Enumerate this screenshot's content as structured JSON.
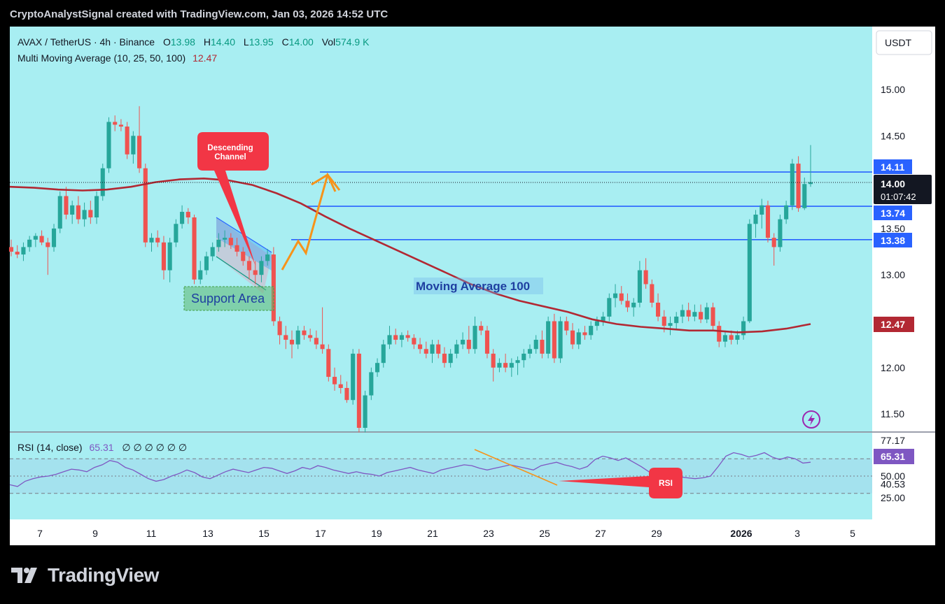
{
  "header": {
    "attribution": "CryptoAnalystSignal created with TradingView.com, Jan 03, 2026 14:52 UTC"
  },
  "footer": {
    "brand": "TradingView"
  },
  "colors": {
    "background": "#000000",
    "chart_bg": "#a8eef2",
    "up": "#26a69a",
    "down": "#ef5350",
    "ma": "#b22833",
    "level_line": "#2962ff",
    "rsi_line": "#7e57c2",
    "callout": "#f23645",
    "arrow": "#f7931a"
  },
  "legend": {
    "symbol": "AVAX / TetherUS · 4h · Binance",
    "o_label": "O",
    "o_value": "13.98",
    "h_label": "H",
    "h_value": "14.40",
    "l_label": "L",
    "l_value": "13.95",
    "c_label": "C",
    "c_value": "14.00",
    "vol_label": "Vol",
    "vol_value": "574.9 K",
    "ma_name": "Multi Moving Average (10, 25, 50, 100)",
    "ma_value": "12.47"
  },
  "rsi_legend": {
    "name": "RSI (14, close)",
    "value": "65.31",
    "extras": "∅ ∅ ∅ ∅ ∅ ∅"
  },
  "currency_button": "USDT",
  "price_badges": {
    "current": "14.00",
    "countdown": "01:07:42",
    "level_top": "14.11",
    "level_mid": "13.74",
    "level_low": "13.38",
    "ma": "12.47",
    "rsi": "65.31",
    "rsi_high": "77.17"
  },
  "annotations": {
    "descending_channel": "Descending Channel",
    "support_area": "Support Area",
    "moving_average": "Moving Average 100",
    "rsi_callout": "RSI"
  },
  "chart_data": {
    "type": "candlestick",
    "title": "AVAX / TetherUS · 4h · Binance",
    "price_axis": {
      "ticks": [
        "15.00",
        "14.50",
        "14.00",
        "13.50",
        "13.00",
        "12.50",
        "12.00",
        "11.50"
      ],
      "range": [
        11.3,
        15.6
      ]
    },
    "rsi_axis": {
      "ticks": [
        "77.17",
        "50.00",
        "40.53",
        "25.00"
      ],
      "range": [
        0,
        100
      ]
    },
    "x_ticks": [
      "7",
      "9",
      "11",
      "13",
      "15",
      "17",
      "19",
      "21",
      "23",
      "25",
      "27",
      "29",
      "2026",
      "3",
      "5"
    ],
    "levels": [
      14.11,
      13.74,
      13.38
    ],
    "candles": [
      {
        "o": 13.3,
        "h": 13.38,
        "l": 13.2,
        "c": 13.25
      },
      {
        "o": 13.25,
        "h": 13.32,
        "l": 13.18,
        "c": 13.22
      },
      {
        "o": 13.22,
        "h": 13.35,
        "l": 13.15,
        "c": 13.3
      },
      {
        "o": 13.3,
        "h": 13.42,
        "l": 13.25,
        "c": 13.38
      },
      {
        "o": 13.38,
        "h": 13.45,
        "l": 13.3,
        "c": 13.42
      },
      {
        "o": 13.42,
        "h": 13.48,
        "l": 13.32,
        "c": 13.35
      },
      {
        "o": 13.35,
        "h": 13.4,
        "l": 13.0,
        "c": 13.3
      },
      {
        "o": 13.3,
        "h": 13.55,
        "l": 13.25,
        "c": 13.5
      },
      {
        "o": 13.5,
        "h": 13.9,
        "l": 13.45,
        "c": 13.85
      },
      {
        "o": 13.85,
        "h": 13.95,
        "l": 13.6,
        "c": 13.65
      },
      {
        "o": 13.65,
        "h": 13.8,
        "l": 13.55,
        "c": 13.75
      },
      {
        "o": 13.75,
        "h": 13.85,
        "l": 13.55,
        "c": 13.6
      },
      {
        "o": 13.6,
        "h": 13.78,
        "l": 13.52,
        "c": 13.7
      },
      {
        "o": 13.7,
        "h": 13.8,
        "l": 13.55,
        "c": 13.62
      },
      {
        "o": 13.62,
        "h": 13.9,
        "l": 13.55,
        "c": 13.85
      },
      {
        "o": 13.85,
        "h": 14.2,
        "l": 13.8,
        "c": 14.15
      },
      {
        "o": 14.15,
        "h": 14.7,
        "l": 14.1,
        "c": 14.65
      },
      {
        "o": 14.65,
        "h": 14.72,
        "l": 14.55,
        "c": 14.62
      },
      {
        "o": 14.62,
        "h": 14.68,
        "l": 14.55,
        "c": 14.6
      },
      {
        "o": 14.6,
        "h": 14.65,
        "l": 14.25,
        "c": 14.3
      },
      {
        "o": 14.3,
        "h": 14.55,
        "l": 14.2,
        "c": 14.5
      },
      {
        "o": 14.5,
        "h": 14.82,
        "l": 14.1,
        "c": 14.15
      },
      {
        "o": 14.15,
        "h": 14.2,
        "l": 13.3,
        "c": 13.35
      },
      {
        "o": 13.35,
        "h": 13.45,
        "l": 13.25,
        "c": 13.4
      },
      {
        "o": 13.4,
        "h": 13.48,
        "l": 13.3,
        "c": 13.35
      },
      {
        "o": 13.35,
        "h": 13.42,
        "l": 12.95,
        "c": 13.05
      },
      {
        "o": 13.05,
        "h": 13.4,
        "l": 12.92,
        "c": 13.35
      },
      {
        "o": 13.35,
        "h": 13.6,
        "l": 13.3,
        "c": 13.55
      },
      {
        "o": 13.55,
        "h": 13.75,
        "l": 13.5,
        "c": 13.68
      },
      {
        "o": 13.68,
        "h": 13.72,
        "l": 13.55,
        "c": 13.62
      },
      {
        "o": 13.62,
        "h": 13.65,
        "l": 12.9,
        "c": 12.95
      },
      {
        "o": 12.95,
        "h": 13.15,
        "l": 12.9,
        "c": 13.05
      },
      {
        "o": 13.05,
        "h": 13.25,
        "l": 13.0,
        "c": 13.2
      },
      {
        "o": 13.2,
        "h": 13.35,
        "l": 13.15,
        "c": 13.3
      },
      {
        "o": 13.3,
        "h": 13.45,
        "l": 13.25,
        "c": 13.38
      },
      {
        "o": 13.38,
        "h": 13.48,
        "l": 13.3,
        "c": 13.4
      },
      {
        "o": 13.4,
        "h": 13.45,
        "l": 13.28,
        "c": 13.32
      },
      {
        "o": 13.32,
        "h": 13.4,
        "l": 13.2,
        "c": 13.25
      },
      {
        "o": 13.25,
        "h": 13.3,
        "l": 13.1,
        "c": 13.15
      },
      {
        "o": 13.15,
        "h": 13.2,
        "l": 12.95,
        "c": 13.05
      },
      {
        "o": 13.05,
        "h": 13.15,
        "l": 12.9,
        "c": 13.0
      },
      {
        "o": 13.0,
        "h": 13.2,
        "l": 12.92,
        "c": 13.15
      },
      {
        "o": 13.15,
        "h": 13.28,
        "l": 13.1,
        "c": 13.22
      },
      {
        "o": 13.22,
        "h": 13.3,
        "l": 12.45,
        "c": 12.5
      },
      {
        "o": 12.5,
        "h": 12.55,
        "l": 12.25,
        "c": 12.35
      },
      {
        "o": 12.35,
        "h": 12.45,
        "l": 12.2,
        "c": 12.3
      },
      {
        "o": 12.3,
        "h": 12.4,
        "l": 12.1,
        "c": 12.25
      },
      {
        "o": 12.25,
        "h": 12.45,
        "l": 12.2,
        "c": 12.4
      },
      {
        "o": 12.4,
        "h": 12.45,
        "l": 12.3,
        "c": 12.35
      },
      {
        "o": 12.35,
        "h": 12.42,
        "l": 12.28,
        "c": 12.32
      },
      {
        "o": 12.32,
        "h": 12.4,
        "l": 12.2,
        "c": 12.25
      },
      {
        "o": 12.25,
        "h": 12.65,
        "l": 12.15,
        "c": 12.2
      },
      {
        "o": 12.2,
        "h": 12.25,
        "l": 11.85,
        "c": 11.9
      },
      {
        "o": 11.9,
        "h": 12.0,
        "l": 11.75,
        "c": 11.82
      },
      {
        "o": 11.82,
        "h": 11.92,
        "l": 11.72,
        "c": 11.78
      },
      {
        "o": 11.78,
        "h": 11.85,
        "l": 11.62,
        "c": 11.65
      },
      {
        "o": 11.65,
        "h": 12.2,
        "l": 11.6,
        "c": 12.15
      },
      {
        "o": 12.15,
        "h": 12.2,
        "l": 11.3,
        "c": 11.35
      },
      {
        "o": 11.35,
        "h": 11.75,
        "l": 11.3,
        "c": 11.7
      },
      {
        "o": 11.7,
        "h": 12.0,
        "l": 11.65,
        "c": 11.95
      },
      {
        "o": 11.95,
        "h": 12.1,
        "l": 11.9,
        "c": 12.05
      },
      {
        "o": 12.05,
        "h": 12.3,
        "l": 12.0,
        "c": 12.25
      },
      {
        "o": 12.25,
        "h": 12.45,
        "l": 12.2,
        "c": 12.35
      },
      {
        "o": 12.35,
        "h": 12.42,
        "l": 12.25,
        "c": 12.3
      },
      {
        "o": 12.3,
        "h": 12.38,
        "l": 12.22,
        "c": 12.35
      },
      {
        "o": 12.35,
        "h": 12.4,
        "l": 12.28,
        "c": 12.32
      },
      {
        "o": 12.32,
        "h": 12.36,
        "l": 12.2,
        "c": 12.25
      },
      {
        "o": 12.25,
        "h": 12.32,
        "l": 12.15,
        "c": 12.2
      },
      {
        "o": 12.2,
        "h": 12.28,
        "l": 12.1,
        "c": 12.15
      },
      {
        "o": 12.15,
        "h": 12.3,
        "l": 12.05,
        "c": 12.25
      },
      {
        "o": 12.25,
        "h": 12.3,
        "l": 12.1,
        "c": 12.15
      },
      {
        "o": 12.15,
        "h": 12.22,
        "l": 12.0,
        "c": 12.05
      },
      {
        "o": 12.05,
        "h": 12.2,
        "l": 12.0,
        "c": 12.15
      },
      {
        "o": 12.15,
        "h": 12.3,
        "l": 12.1,
        "c": 12.25
      },
      {
        "o": 12.25,
        "h": 12.38,
        "l": 12.2,
        "c": 12.3
      },
      {
        "o": 12.3,
        "h": 12.45,
        "l": 12.15,
        "c": 12.2
      },
      {
        "o": 12.2,
        "h": 12.55,
        "l": 12.15,
        "c": 12.45
      },
      {
        "o": 12.45,
        "h": 12.5,
        "l": 12.35,
        "c": 12.4
      },
      {
        "o": 12.4,
        "h": 12.45,
        "l": 12.1,
        "c": 12.15
      },
      {
        "o": 12.15,
        "h": 12.2,
        "l": 11.85,
        "c": 12.0
      },
      {
        "o": 12.0,
        "h": 12.1,
        "l": 11.95,
        "c": 12.05
      },
      {
        "o": 12.05,
        "h": 12.15,
        "l": 11.95,
        "c": 12.0
      },
      {
        "o": 12.0,
        "h": 12.1,
        "l": 11.9,
        "c": 12.05
      },
      {
        "o": 12.05,
        "h": 12.12,
        "l": 11.92,
        "c": 12.08
      },
      {
        "o": 12.08,
        "h": 12.2,
        "l": 12.0,
        "c": 12.15
      },
      {
        "o": 12.15,
        "h": 12.25,
        "l": 12.1,
        "c": 12.2
      },
      {
        "o": 12.2,
        "h": 12.35,
        "l": 12.15,
        "c": 12.3
      },
      {
        "o": 12.3,
        "h": 12.4,
        "l": 12.1,
        "c": 12.15
      },
      {
        "o": 12.15,
        "h": 12.55,
        "l": 12.1,
        "c": 12.5
      },
      {
        "o": 12.5,
        "h": 12.58,
        "l": 12.05,
        "c": 12.1
      },
      {
        "o": 12.1,
        "h": 12.55,
        "l": 12.05,
        "c": 12.5
      },
      {
        "o": 12.5,
        "h": 12.55,
        "l": 12.35,
        "c": 12.4
      },
      {
        "o": 12.4,
        "h": 12.48,
        "l": 12.2,
        "c": 12.25
      },
      {
        "o": 12.25,
        "h": 12.42,
        "l": 12.2,
        "c": 12.38
      },
      {
        "o": 12.38,
        "h": 12.45,
        "l": 12.3,
        "c": 12.35
      },
      {
        "o": 12.35,
        "h": 12.5,
        "l": 12.3,
        "c": 12.45
      },
      {
        "o": 12.45,
        "h": 12.55,
        "l": 12.4,
        "c": 12.5
      },
      {
        "o": 12.5,
        "h": 12.6,
        "l": 12.45,
        "c": 12.55
      },
      {
        "o": 12.55,
        "h": 12.8,
        "l": 12.5,
        "c": 12.75
      },
      {
        "o": 12.75,
        "h": 12.9,
        "l": 12.65,
        "c": 12.8
      },
      {
        "o": 12.8,
        "h": 12.88,
        "l": 12.68,
        "c": 12.72
      },
      {
        "o": 12.72,
        "h": 12.8,
        "l": 12.6,
        "c": 12.65
      },
      {
        "o": 12.65,
        "h": 12.75,
        "l": 12.55,
        "c": 12.7
      },
      {
        "o": 12.7,
        "h": 13.15,
        "l": 12.65,
        "c": 13.05
      },
      {
        "o": 13.05,
        "h": 13.18,
        "l": 12.85,
        "c": 12.9
      },
      {
        "o": 12.9,
        "h": 12.95,
        "l": 12.65,
        "c": 12.7
      },
      {
        "o": 12.7,
        "h": 12.8,
        "l": 12.5,
        "c": 12.55
      },
      {
        "o": 12.55,
        "h": 12.62,
        "l": 12.38,
        "c": 12.45
      },
      {
        "o": 12.45,
        "h": 12.55,
        "l": 12.35,
        "c": 12.48
      },
      {
        "o": 12.48,
        "h": 12.6,
        "l": 12.42,
        "c": 12.55
      },
      {
        "o": 12.55,
        "h": 12.68,
        "l": 12.48,
        "c": 12.62
      },
      {
        "o": 12.62,
        "h": 12.7,
        "l": 12.5,
        "c": 12.55
      },
      {
        "o": 12.55,
        "h": 12.68,
        "l": 12.5,
        "c": 12.6
      },
      {
        "o": 12.6,
        "h": 12.68,
        "l": 12.48,
        "c": 12.52
      },
      {
        "o": 12.52,
        "h": 12.7,
        "l": 12.48,
        "c": 12.65
      },
      {
        "o": 12.65,
        "h": 12.7,
        "l": 12.4,
        "c": 12.45
      },
      {
        "o": 12.45,
        "h": 12.5,
        "l": 12.22,
        "c": 12.28
      },
      {
        "o": 12.28,
        "h": 12.4,
        "l": 12.22,
        "c": 12.35
      },
      {
        "o": 12.35,
        "h": 12.4,
        "l": 12.25,
        "c": 12.3
      },
      {
        "o": 12.3,
        "h": 12.4,
        "l": 12.25,
        "c": 12.35
      },
      {
        "o": 12.35,
        "h": 12.55,
        "l": 12.3,
        "c": 12.5
      },
      {
        "o": 12.5,
        "h": 13.6,
        "l": 12.48,
        "c": 13.55
      },
      {
        "o": 13.55,
        "h": 13.7,
        "l": 13.4,
        "c": 13.65
      },
      {
        "o": 13.65,
        "h": 13.82,
        "l": 13.5,
        "c": 13.75
      },
      {
        "o": 13.75,
        "h": 13.8,
        "l": 13.35,
        "c": 13.4
      },
      {
        "o": 13.4,
        "h": 13.45,
        "l": 13.1,
        "c": 13.3
      },
      {
        "o": 13.3,
        "h": 13.65,
        "l": 13.25,
        "c": 13.6
      },
      {
        "o": 13.6,
        "h": 13.8,
        "l": 13.55,
        "c": 13.75
      },
      {
        "o": 13.75,
        "h": 14.25,
        "l": 13.7,
        "c": 14.2
      },
      {
        "o": 14.2,
        "h": 14.28,
        "l": 13.68,
        "c": 13.72
      },
      {
        "o": 13.72,
        "h": 14.05,
        "l": 13.7,
        "c": 13.98
      },
      {
        "o": 13.98,
        "h": 14.4,
        "l": 13.95,
        "c": 14.0
      }
    ],
    "ma100": [
      13.95,
      13.94,
      13.92,
      13.91,
      13.92,
      13.95,
      14.0,
      14.03,
      14.04,
      14.02,
      13.97,
      13.88,
      13.77,
      13.63,
      13.5,
      13.38,
      13.26,
      13.14,
      13.02,
      12.9,
      12.8,
      12.72,
      12.66,
      12.6,
      12.52,
      12.47,
      12.44,
      12.42,
      12.4,
      12.4,
      12.38,
      12.39,
      12.42,
      12.47
    ],
    "rsi": [
      40,
      38,
      44,
      47,
      49,
      50,
      52,
      55,
      58,
      57,
      55,
      60,
      63,
      68,
      66,
      60,
      57,
      52,
      47,
      44,
      46,
      50,
      53,
      57,
      54,
      49,
      47,
      51,
      55,
      58,
      56,
      54,
      57,
      60,
      59,
      56,
      53,
      56,
      60,
      58,
      62,
      60,
      57,
      55,
      53,
      55,
      53,
      52,
      50,
      54,
      56,
      58,
      60,
      57,
      55,
      53,
      57,
      59,
      61,
      63,
      62,
      59,
      57,
      59,
      61,
      63,
      61,
      59,
      57,
      62,
      64,
      66,
      63,
      61,
      58,
      61,
      69,
      73,
      71,
      68,
      71,
      66,
      61,
      55,
      53,
      51,
      50,
      49,
      48,
      47,
      48,
      50,
      61,
      73,
      77,
      75,
      72,
      74,
      77,
      72,
      69,
      72,
      70,
      65,
      66
    ],
    "rsi_x_start_label": "13",
    "title_series_names": [
      "MA 100",
      "RSI (14, close)"
    ]
  }
}
